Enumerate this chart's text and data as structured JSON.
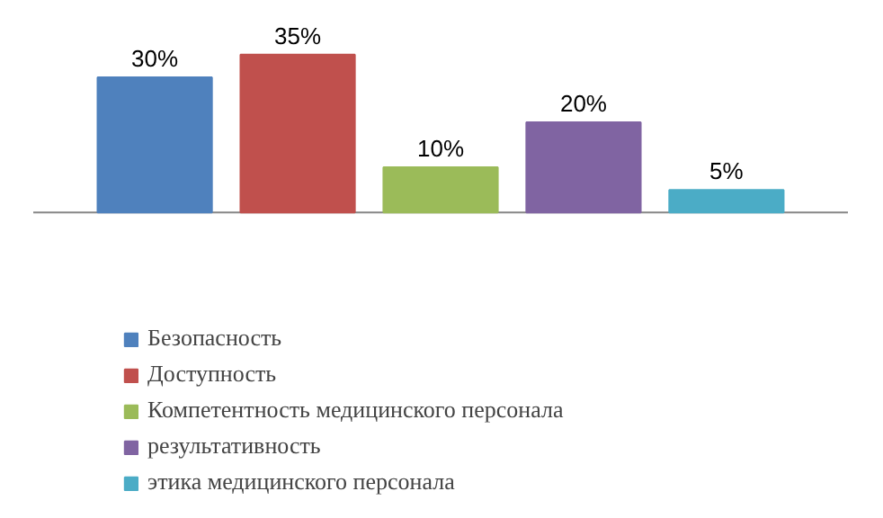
{
  "chart_data": {
    "type": "bar",
    "categories": [
      null
    ],
    "series": [
      {
        "name": "Безопасность",
        "color": "#4f81bd",
        "values": [
          30
        ],
        "value_labels": [
          "30%"
        ]
      },
      {
        "name": "Доступность",
        "color": "#c0504d",
        "values": [
          35
        ],
        "value_labels": [
          "35%"
        ]
      },
      {
        "name": "Компетентность медицинского персонала",
        "color": "#9bbb59",
        "values": [
          10
        ],
        "value_labels": [
          "10%"
        ]
      },
      {
        "name": "результативность",
        "color": "#8064a2",
        "values": [
          20
        ],
        "value_labels": [
          "20%"
        ]
      },
      {
        "name": "этика медицинского персонала",
        "color": "#4bacc6",
        "values": [
          5
        ],
        "value_labels": [
          "5%"
        ]
      }
    ],
    "legend": "bottom"
  }
}
